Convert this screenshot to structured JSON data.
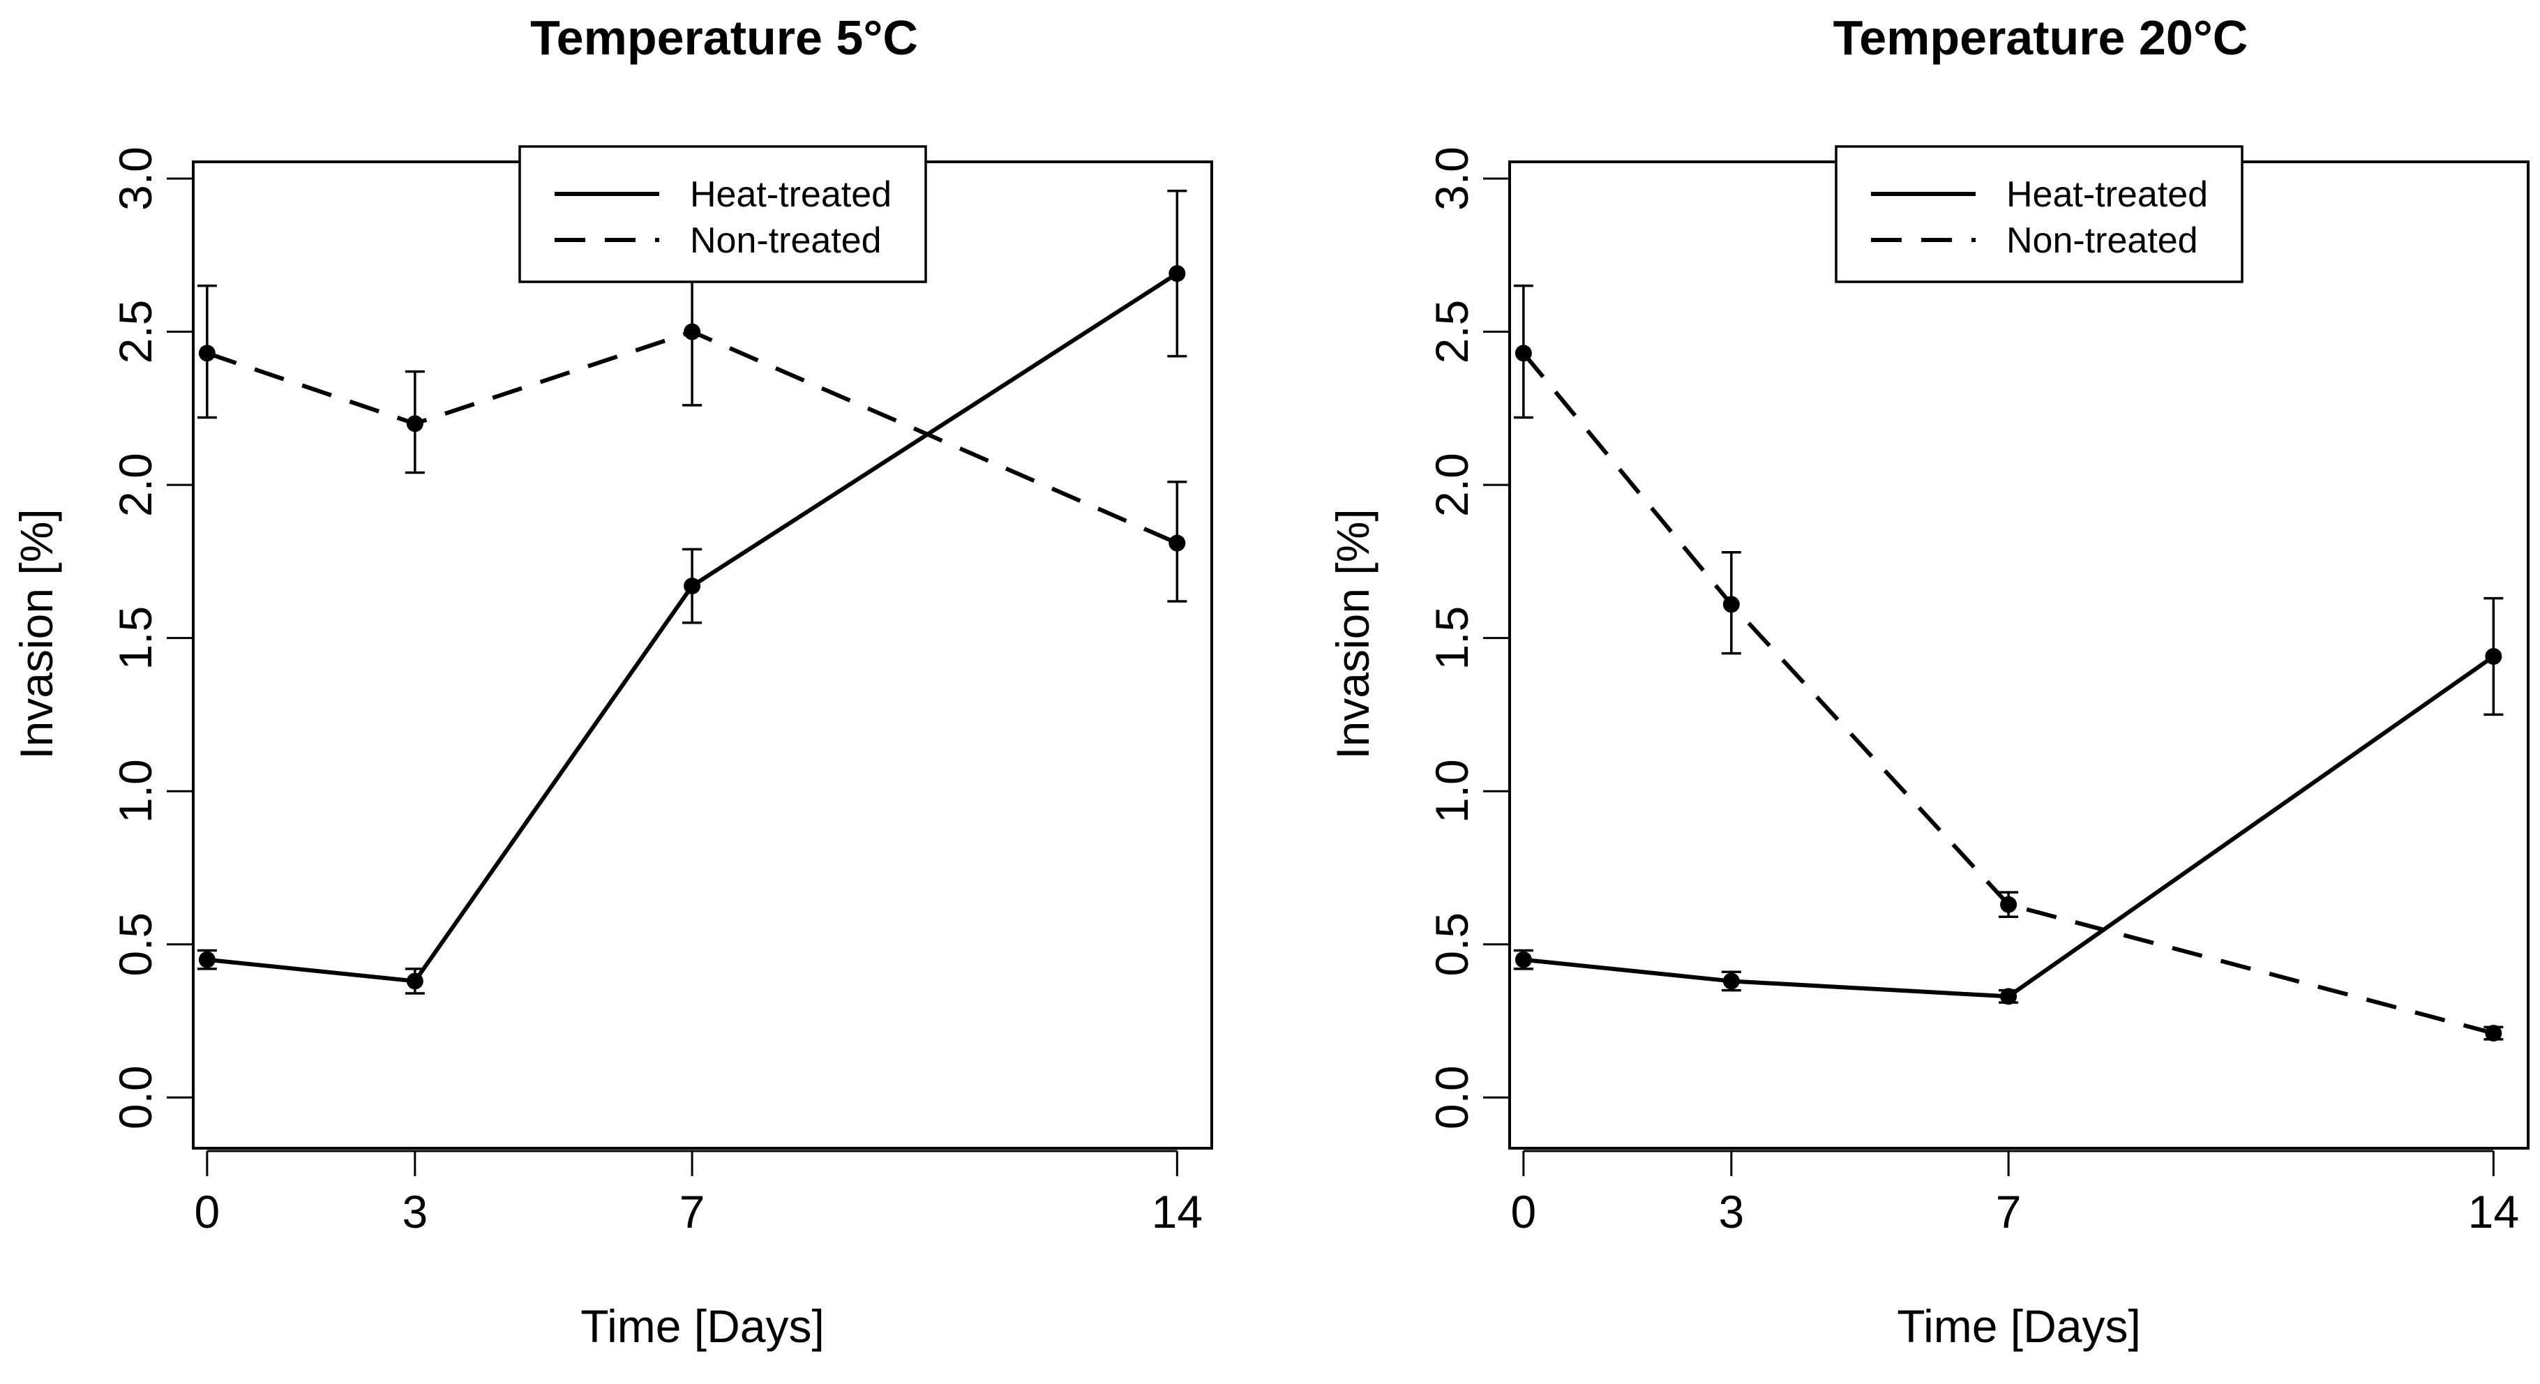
{
  "chart_data": [
    {
      "type": "line",
      "title": "Temperature 5°C",
      "xlabel": "Time [Days]",
      "ylabel": "Invasion [%]",
      "x": [
        0,
        3,
        7,
        14
      ],
      "x_ticks": [
        "0",
        "3",
        "7",
        "14"
      ],
      "xlim": [
        -0.2,
        14.5
      ],
      "ylim": [
        -0.12,
        3.0
      ],
      "y_ticks": [
        "0.0",
        "0.5",
        "1.0",
        "1.5",
        "2.0",
        "2.5",
        "3.0"
      ],
      "legend_position": "top-center",
      "series": [
        {
          "name": "Heat-treated",
          "linestyle": "solid",
          "values": [
            0.45,
            0.38,
            1.67,
            2.69
          ],
          "err_low": [
            0.42,
            0.34,
            1.55,
            2.42
          ],
          "err_high": [
            0.48,
            0.42,
            1.79,
            2.96
          ]
        },
        {
          "name": "Non-treated",
          "linestyle": "dashed",
          "values": [
            2.43,
            2.2,
            2.5,
            1.81
          ],
          "err_low": [
            2.22,
            2.04,
            2.26,
            1.62
          ],
          "err_high": [
            2.65,
            2.37,
            2.74,
            2.01
          ]
        }
      ]
    },
    {
      "type": "line",
      "title": "Temperature 20°C",
      "xlabel": "Time [Days]",
      "ylabel": "Invasion [%]",
      "x": [
        0,
        3,
        7,
        14
      ],
      "x_ticks": [
        "0",
        "3",
        "7",
        "14"
      ],
      "xlim": [
        -0.2,
        14.5
      ],
      "ylim": [
        -0.12,
        3.0
      ],
      "y_ticks": [
        "0.0",
        "0.5",
        "1.0",
        "1.5",
        "2.0",
        "2.5",
        "3.0"
      ],
      "legend_position": "top-center",
      "series": [
        {
          "name": "Heat-treated",
          "linestyle": "solid",
          "values": [
            0.45,
            0.38,
            0.33,
            1.44
          ],
          "err_low": [
            0.42,
            0.35,
            0.31,
            1.25
          ],
          "err_high": [
            0.48,
            0.41,
            0.35,
            1.63
          ]
        },
        {
          "name": "Non-treated",
          "linestyle": "dashed",
          "values": [
            2.43,
            1.61,
            0.63,
            0.21
          ],
          "err_low": [
            2.22,
            1.45,
            0.59,
            0.19
          ],
          "err_high": [
            2.65,
            1.78,
            0.67,
            0.23
          ]
        }
      ]
    }
  ]
}
